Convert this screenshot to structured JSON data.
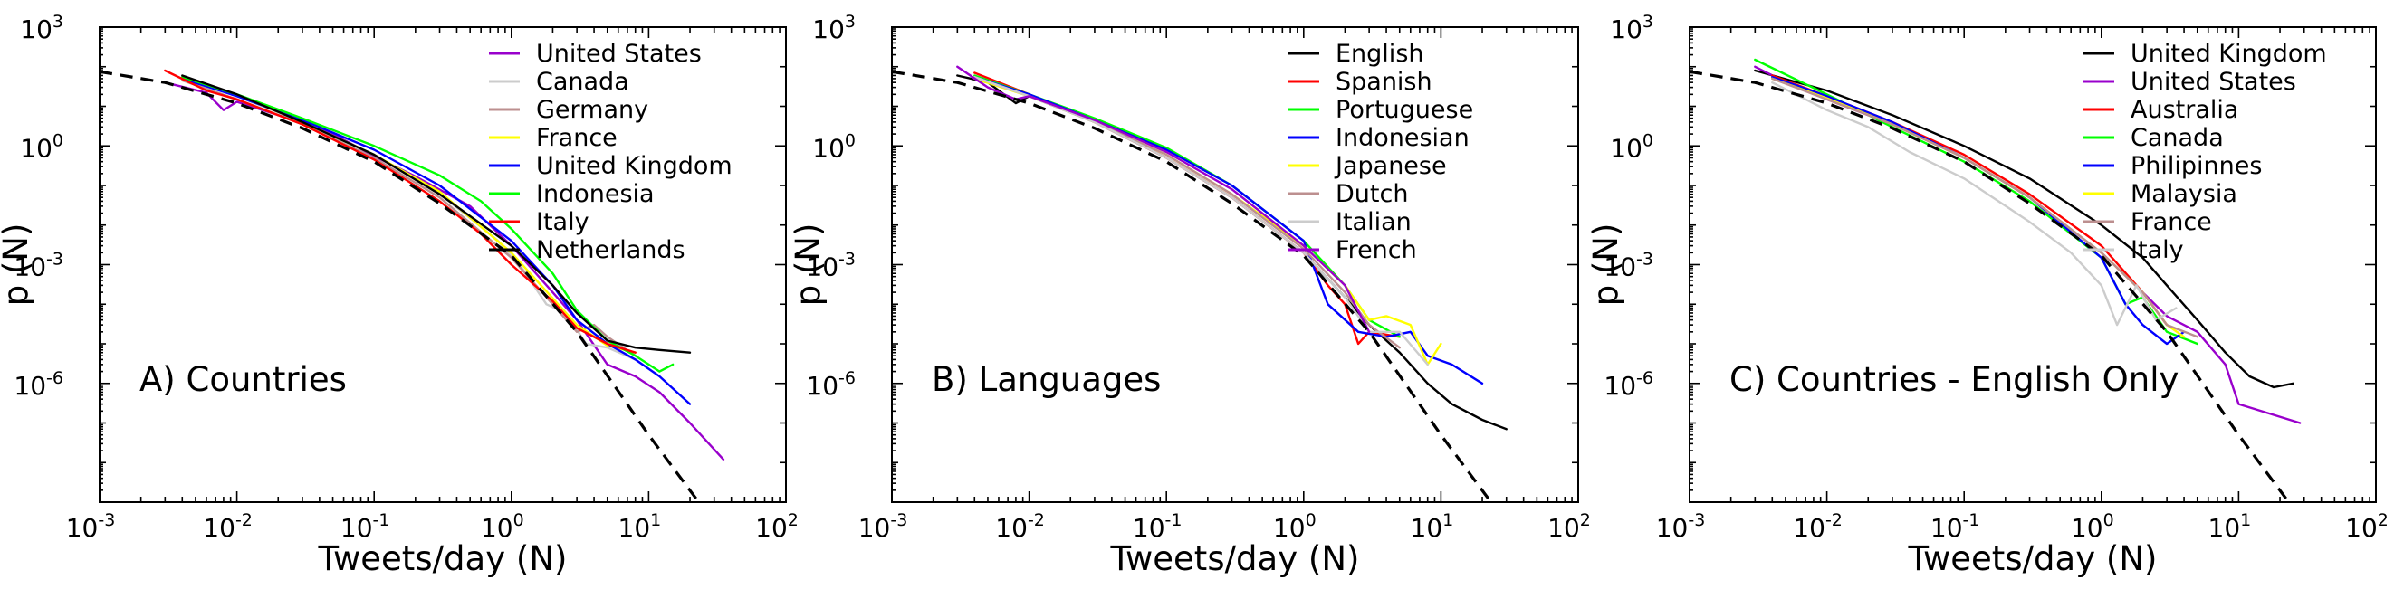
{
  "chart_data": [
    {
      "type": "line",
      "panel_label": "A) Countries",
      "xlabel": "Tweets/day (N)",
      "ylabel": "p (N)",
      "xscale": "log",
      "yscale": "log",
      "xlim": [
        0.001,
        100
      ],
      "ylim": [
        1e-09,
        1000
      ],
      "x_ticks": [
        {
          "base": "10",
          "exp": "-3"
        },
        {
          "base": "10",
          "exp": "-2"
        },
        {
          "base": "10",
          "exp": "-1"
        },
        {
          "base": "10",
          "exp": "0"
        },
        {
          "base": "10",
          "exp": "1"
        },
        {
          "base": "10",
          "exp": "2"
        }
      ],
      "y_ticks": [
        {
          "base": "10",
          "exp": "-6"
        },
        {
          "base": "10",
          "exp": "-3"
        },
        {
          "base": "10",
          "exp": "0"
        },
        {
          "base": "10",
          "exp": "3"
        }
      ],
      "legend_position": "top-right",
      "fit": {
        "x": [
          0.001,
          0.003,
          0.01,
          0.03,
          0.1,
          0.3,
          1,
          3,
          10,
          30
        ],
        "y": [
          75,
          40,
          12,
          2.8,
          0.4,
          0.035,
          0.0017,
          2e-05,
          5e-08,
          3e-10
        ]
      },
      "series": [
        {
          "name": "United States",
          "color": "#9900cc",
          "x": [
            0.003,
            0.006,
            0.008,
            0.01,
            0.02,
            0.05,
            0.1,
            0.2,
            0.5,
            1,
            2,
            3,
            5,
            8,
            12,
            20,
            35
          ],
          "y": [
            40,
            22,
            8,
            13,
            6,
            2,
            0.55,
            0.17,
            0.03,
            0.003,
            0.0002,
            4e-05,
            3e-06,
            1.5e-06,
            6e-07,
            1e-07,
            1.2e-08
          ]
        },
        {
          "name": "Canada",
          "color": "#cccccc",
          "x": [
            0.004,
            0.01,
            0.03,
            0.1,
            0.3,
            0.5,
            0.8,
            1.2,
            1.8,
            2.5,
            3.5,
            5,
            8
          ],
          "y": [
            50,
            18,
            4,
            0.6,
            0.06,
            0.015,
            0.004,
            0.0008,
            0.0001,
            6e-05,
            1e-05,
            8e-06,
            4e-06
          ]
        },
        {
          "name": "Germany",
          "color": "#bc8f8f",
          "x": [
            0.004,
            0.01,
            0.03,
            0.1,
            0.3,
            1,
            2,
            3,
            4,
            5,
            8
          ],
          "y": [
            45,
            15,
            3.5,
            0.5,
            0.05,
            0.0015,
            0.0001,
            2e-05,
            3e-05,
            1.5e-05,
            5e-06
          ]
        },
        {
          "name": "France",
          "color": "#ffff00",
          "x": [
            0.004,
            0.01,
            0.03,
            0.1,
            0.3,
            1,
            3,
            5,
            8
          ],
          "y": [
            55,
            20,
            4,
            0.6,
            0.07,
            0.002,
            3e-05,
            9e-06,
            6e-06
          ]
        },
        {
          "name": "United Kingdom",
          "color": "#0000ff",
          "x": [
            0.004,
            0.01,
            0.03,
            0.1,
            0.3,
            1,
            2,
            3,
            5,
            8,
            12,
            20
          ],
          "y": [
            50,
            18,
            4.5,
            0.8,
            0.1,
            0.004,
            0.0003,
            4e-05,
            1e-05,
            4e-06,
            1.5e-06,
            3e-07
          ]
        },
        {
          "name": "Indonesia",
          "color": "#00ff00",
          "x": [
            0.004,
            0.01,
            0.03,
            0.1,
            0.3,
            0.6,
            1,
            2,
            3,
            5,
            8,
            12,
            15
          ],
          "y": [
            55,
            20,
            5,
            1,
            0.18,
            0.04,
            0.008,
            0.0006,
            7e-05,
            1.2e-05,
            5e-06,
            2e-06,
            3e-06
          ]
        },
        {
          "name": "Italy",
          "color": "#ff0000",
          "x": [
            0.003,
            0.006,
            0.01,
            0.03,
            0.1,
            0.3,
            0.6,
            1,
            2,
            3,
            5,
            8
          ],
          "y": [
            80,
            25,
            15,
            3.5,
            0.45,
            0.04,
            0.006,
            0.001,
            0.00012,
            2.5e-05,
            1e-05,
            6e-06
          ]
        },
        {
          "name": "Netherlands",
          "color": "#000000",
          "x": [
            0.004,
            0.01,
            0.03,
            0.1,
            0.3,
            1,
            2,
            3,
            5,
            8,
            12,
            20
          ],
          "y": [
            60,
            20,
            4,
            0.6,
            0.06,
            0.003,
            0.0003,
            6e-05,
            1.2e-05,
            8e-06,
            7e-06,
            6e-06
          ]
        }
      ]
    },
    {
      "type": "line",
      "panel_label": "B) Languages",
      "xlabel": "Tweets/day (N)",
      "ylabel": "p (N)",
      "xscale": "log",
      "yscale": "log",
      "xlim": [
        0.001,
        100
      ],
      "ylim": [
        1e-09,
        1000
      ],
      "x_ticks": [
        {
          "base": "10",
          "exp": "-3"
        },
        {
          "base": "10",
          "exp": "-2"
        },
        {
          "base": "10",
          "exp": "-1"
        },
        {
          "base": "10",
          "exp": "0"
        },
        {
          "base": "10",
          "exp": "1"
        },
        {
          "base": "10",
          "exp": "2"
        }
      ],
      "y_ticks": [
        {
          "base": "10",
          "exp": "-6"
        },
        {
          "base": "10",
          "exp": "-3"
        },
        {
          "base": "10",
          "exp": "0"
        },
        {
          "base": "10",
          "exp": "3"
        }
      ],
      "legend_position": "top-right",
      "fit": {
        "x": [
          0.001,
          0.003,
          0.01,
          0.03,
          0.1,
          0.3,
          1,
          3,
          10,
          30
        ],
        "y": [
          75,
          40,
          12,
          2.8,
          0.4,
          0.035,
          0.0017,
          2e-05,
          5e-08,
          3e-10
        ]
      },
      "series": [
        {
          "name": "English",
          "color": "#000000",
          "x": [
            0.003,
            0.005,
            0.008,
            0.01,
            0.03,
            0.1,
            0.3,
            1,
            2,
            3,
            5,
            8,
            12,
            20,
            30
          ],
          "y": [
            60,
            40,
            12,
            18,
            4,
            0.5,
            0.05,
            0.002,
            0.00015,
            3e-05,
            6e-06,
            1e-06,
            3e-07,
            1.2e-07,
            7e-08
          ]
        },
        {
          "name": "Spanish",
          "color": "#ff0000",
          "x": [
            0.004,
            0.01,
            0.03,
            0.1,
            0.3,
            1,
            1.5,
            2,
            2.5,
            3,
            5
          ],
          "y": [
            70,
            20,
            4,
            0.5,
            0.05,
            0.002,
            0.0003,
            0.0001,
            1e-05,
            2e-05,
            1.5e-05
          ]
        },
        {
          "name": "Portuguese",
          "color": "#00ff00",
          "x": [
            0.004,
            0.01,
            0.03,
            0.1,
            0.3,
            1,
            2,
            3,
            5
          ],
          "y": [
            60,
            20,
            5,
            0.9,
            0.1,
            0.004,
            0.0003,
            4e-05,
            1.5e-05
          ]
        },
        {
          "name": "Indonesian",
          "color": "#0000ff",
          "x": [
            0.004,
            0.01,
            0.03,
            0.1,
            0.3,
            1,
            1.5,
            2.5,
            4,
            6,
            8,
            12,
            20
          ],
          "y": [
            55,
            20,
            4.5,
            0.8,
            0.1,
            0.004,
            0.0001,
            2e-05,
            1.5e-05,
            2e-05,
            5e-06,
            3e-06,
            1e-06
          ]
        },
        {
          "name": "Japanese",
          "color": "#ffff00",
          "x": [
            0.004,
            0.01,
            0.03,
            0.1,
            0.3,
            1,
            2,
            3,
            4,
            6,
            8,
            10
          ],
          "y": [
            50,
            18,
            4,
            0.6,
            0.06,
            0.003,
            0.0003,
            4e-05,
            5e-05,
            3e-05,
            3e-06,
            1e-05
          ]
        },
        {
          "name": "Dutch",
          "color": "#bc8f8f",
          "x": [
            0.004,
            0.01,
            0.03,
            0.1,
            0.3,
            1,
            2,
            3,
            5
          ],
          "y": [
            55,
            18,
            4,
            0.6,
            0.06,
            0.0025,
            0.0002,
            3e-05,
            8e-06
          ]
        },
        {
          "name": "Italian",
          "color": "#cccccc",
          "x": [
            0.004,
            0.01,
            0.03,
            0.1,
            0.3,
            1,
            2,
            3,
            5,
            8
          ],
          "y": [
            55,
            18,
            4,
            0.5,
            0.05,
            0.002,
            0.00015,
            2e-05,
            2e-05,
            3e-06
          ]
        },
        {
          "name": "French",
          "color": "#9900cc",
          "x": [
            0.003,
            0.005,
            0.008,
            0.01,
            0.03,
            0.1,
            0.3,
            1,
            2,
            3
          ],
          "y": [
            100,
            30,
            15,
            18,
            4.5,
            0.7,
            0.08,
            0.003,
            0.0003,
            2e-05
          ]
        }
      ]
    },
    {
      "type": "line",
      "panel_label": "C) Countries - English Only",
      "xlabel": "Tweets/day (N)",
      "ylabel": "p (N)",
      "xscale": "log",
      "yscale": "log",
      "xlim": [
        0.001,
        100
      ],
      "ylim": [
        1e-09,
        1000
      ],
      "x_ticks": [
        {
          "base": "10",
          "exp": "-3"
        },
        {
          "base": "10",
          "exp": "-2"
        },
        {
          "base": "10",
          "exp": "-1"
        },
        {
          "base": "10",
          "exp": "0"
        },
        {
          "base": "10",
          "exp": "1"
        },
        {
          "base": "10",
          "exp": "2"
        }
      ],
      "y_ticks": [
        {
          "base": "10",
          "exp": "-6"
        },
        {
          "base": "10",
          "exp": "-3"
        },
        {
          "base": "10",
          "exp": "0"
        },
        {
          "base": "10",
          "exp": "3"
        }
      ],
      "legend_position": "top-right",
      "fit": {
        "x": [
          0.001,
          0.003,
          0.01,
          0.03,
          0.1,
          0.3,
          1,
          3,
          10,
          30
        ],
        "y": [
          75,
          40,
          12,
          2.8,
          0.4,
          0.035,
          0.0017,
          2e-05,
          5e-08,
          3e-10
        ]
      },
      "series": [
        {
          "name": "United Kingdom",
          "color": "#000000",
          "x": [
            0.003,
            0.01,
            0.03,
            0.1,
            0.3,
            1,
            2,
            3,
            5,
            8,
            12,
            18,
            25
          ],
          "y": [
            80,
            25,
            6,
            1,
            0.15,
            0.01,
            0.0015,
            0.0003,
            4e-05,
            6e-06,
            1.5e-06,
            8e-07,
            1e-06
          ]
        },
        {
          "name": "United States",
          "color": "#9900cc",
          "x": [
            0.003,
            0.006,
            0.01,
            0.03,
            0.1,
            0.3,
            1,
            2,
            3,
            5,
            8,
            10,
            28
          ],
          "y": [
            100,
            30,
            15,
            3.5,
            0.5,
            0.05,
            0.002,
            0.0002,
            5e-05,
            2e-05,
            3e-06,
            3e-07,
            1e-07
          ]
        },
        {
          "name": "Australia",
          "color": "#ff0000",
          "x": [
            0.004,
            0.01,
            0.03,
            0.1,
            0.3,
            1,
            2,
            3
          ],
          "y": [
            60,
            18,
            4,
            0.6,
            0.06,
            0.003,
            0.0002,
            3e-05
          ]
        },
        {
          "name": "Canada",
          "color": "#00ff00",
          "x": [
            0.003,
            0.01,
            0.03,
            0.1,
            0.3,
            1,
            1.5,
            2,
            3,
            5
          ],
          "y": [
            150,
            20,
            3,
            0.4,
            0.04,
            0.0015,
            0.0001,
            0.00015,
            2e-05,
            1e-05
          ]
        },
        {
          "name": "Philipinnes",
          "color": "#0000ff",
          "x": [
            0.004,
            0.01,
            0.03,
            0.1,
            0.3,
            1,
            1.5,
            2,
            3,
            4
          ],
          "y": [
            55,
            18,
            4,
            0.5,
            0.05,
            0.0015,
            0.0001,
            3e-05,
            1e-05,
            2e-05
          ]
        },
        {
          "name": "Malaysia",
          "color": "#ffff00",
          "x": [
            0.004,
            0.01,
            0.03,
            0.1,
            0.3,
            1,
            2,
            3,
            4
          ],
          "y": [
            50,
            16,
            3.5,
            0.5,
            0.05,
            0.002,
            0.0002,
            3e-05,
            1.5e-05
          ]
        },
        {
          "name": "France",
          "color": "#bc8f8f",
          "x": [
            0.004,
            0.01,
            0.03,
            0.1,
            0.3,
            1,
            2,
            3,
            5
          ],
          "y": [
            50,
            15,
            3.5,
            0.5,
            0.05,
            0.002,
            0.0002,
            3e-05,
            1.5e-05
          ]
        },
        {
          "name": "Italy",
          "color": "#cccccc",
          "x": [
            0.004,
            0.01,
            0.02,
            0.04,
            0.1,
            0.3,
            0.6,
            1,
            1.3,
            1.8,
            2.5,
            3.5
          ],
          "y": [
            40,
            8,
            3,
            0.7,
            0.15,
            0.012,
            0.002,
            0.0003,
            3e-05,
            0.0003,
            4e-05,
            8e-05
          ]
        }
      ]
    }
  ]
}
